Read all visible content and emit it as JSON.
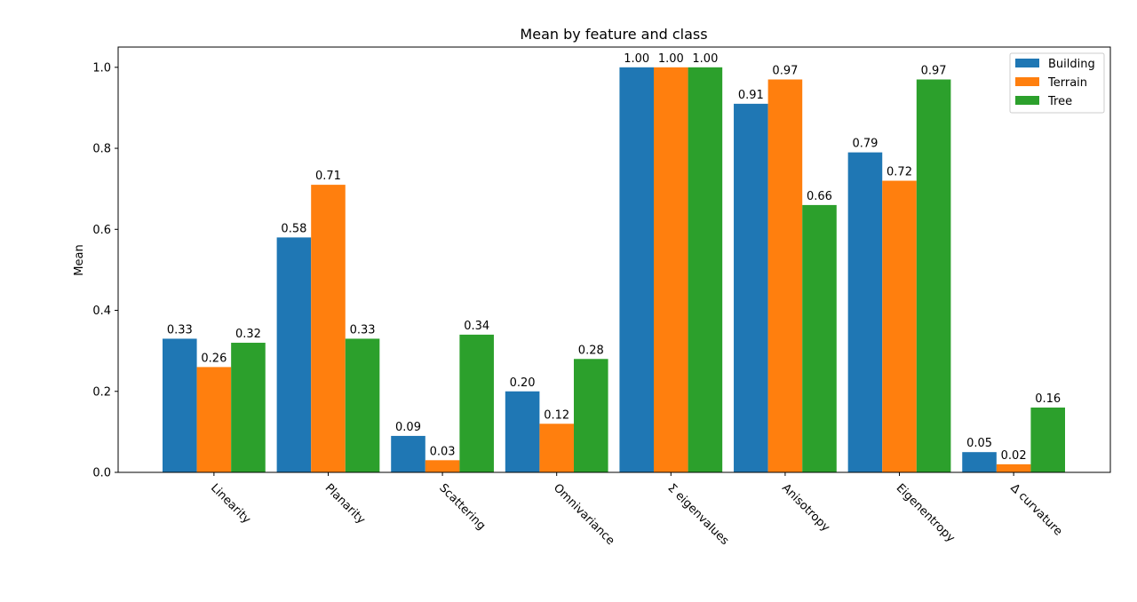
{
  "chart_data": {
    "type": "bar",
    "title": "Mean by feature and class",
    "xlabel": "",
    "ylabel": "Mean",
    "ylim": [
      0,
      1.05
    ],
    "yticks": [
      "0.0",
      "0.2",
      "0.4",
      "0.6",
      "0.8",
      "1.0"
    ],
    "categories": [
      "Linearity",
      "Planarity",
      "Scattering",
      "Omnivariance",
      "Σ eigenvalues",
      "Anisotropy",
      "Eigenentropy",
      "Δ curvature"
    ],
    "series": [
      {
        "name": "Building",
        "color": "#1f77b4",
        "values": [
          0.33,
          0.58,
          0.09,
          0.2,
          1.0,
          0.91,
          0.79,
          0.05
        ],
        "labels": [
          "0.33",
          "0.58",
          "0.09",
          "0.20",
          "1.00",
          "0.91",
          "0.79",
          "0.05"
        ]
      },
      {
        "name": "Terrain",
        "color": "#ff7f0e",
        "values": [
          0.26,
          0.71,
          0.03,
          0.12,
          1.0,
          0.97,
          0.72,
          0.02
        ],
        "labels": [
          "0.26",
          "0.71",
          "0.03",
          "0.12",
          "1.00",
          "0.97",
          "0.72",
          "0.02"
        ]
      },
      {
        "name": "Tree",
        "color": "#2ca02c",
        "values": [
          0.32,
          0.33,
          0.34,
          0.28,
          1.0,
          0.66,
          0.97,
          0.16
        ],
        "labels": [
          "0.32",
          "0.33",
          "0.34",
          "0.28",
          "1.00",
          "0.66",
          "0.97",
          "0.16"
        ]
      }
    ],
    "legend": "top-right",
    "grid": false
  }
}
